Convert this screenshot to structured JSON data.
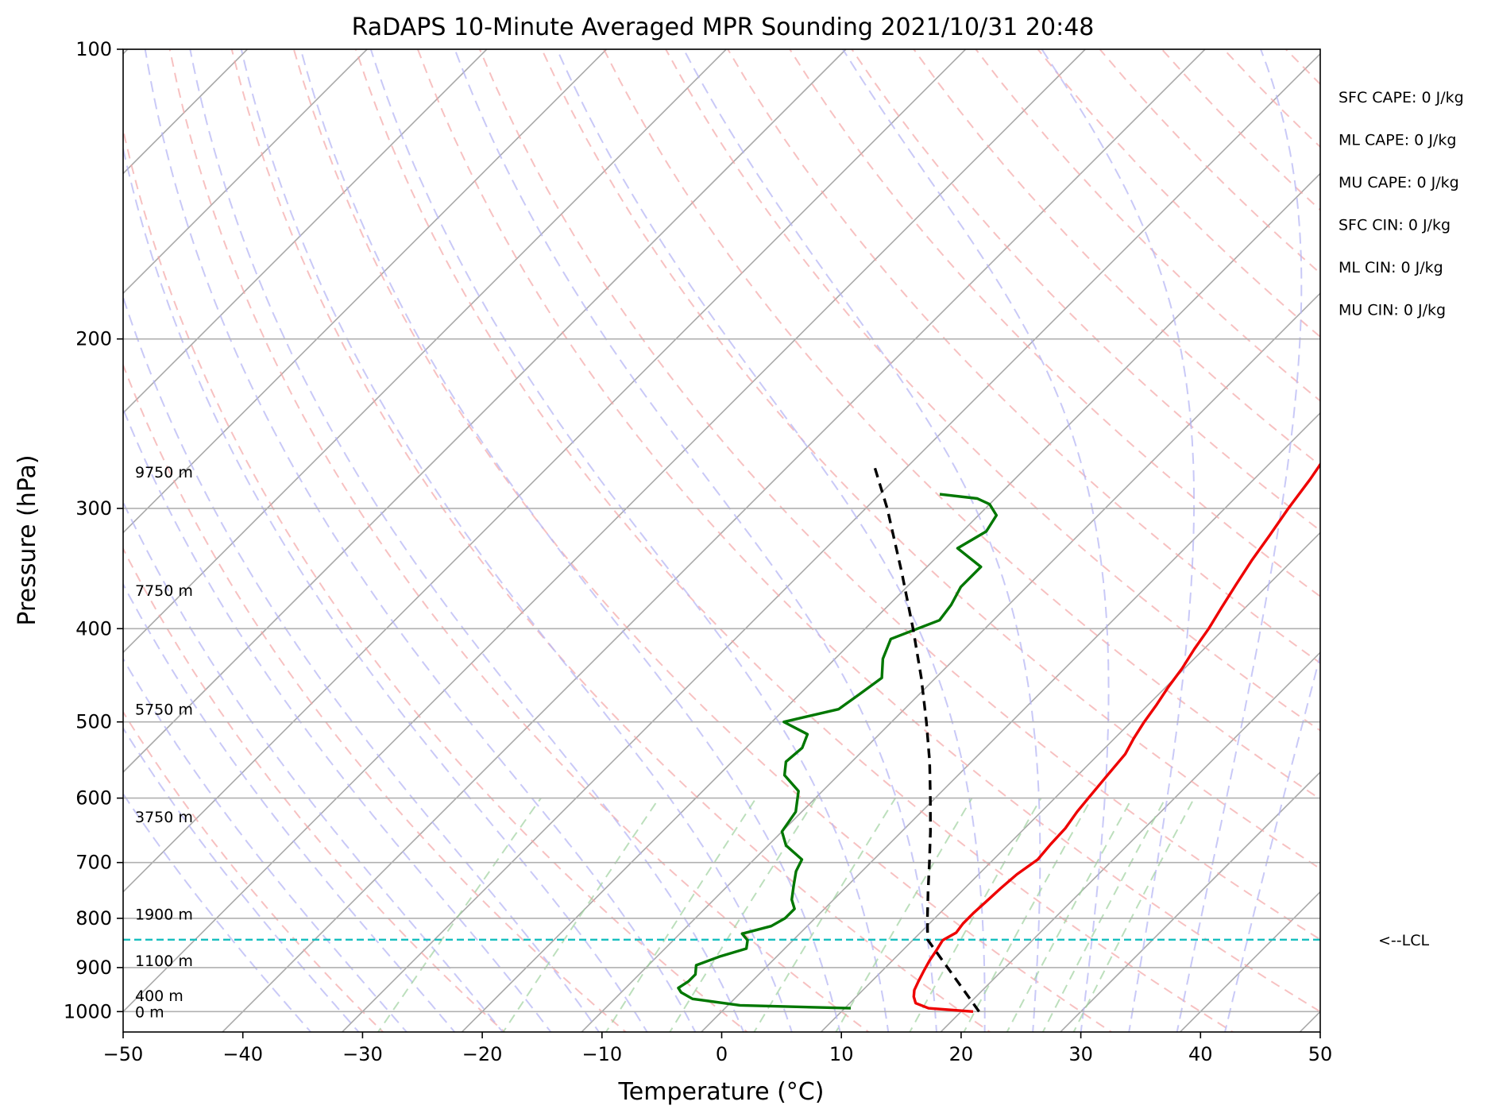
{
  "chart_data": {
    "type": "line",
    "title": "RaDAPS 10-Minute Averaged MPR Sounding 2021/10/31 20:48",
    "xlabel": "Temperature (°C)",
    "ylabel": "Pressure (hPa)",
    "xlim": [
      -50,
      50
    ],
    "ylim": [
      1050,
      100
    ],
    "y_scale": "log",
    "skew": true,
    "grid": true,
    "x_ticks": [
      "−50",
      "−40",
      "−30",
      "−20",
      "−10",
      "0",
      "10",
      "20",
      "30",
      "40",
      "50"
    ],
    "y_ticks": [
      "100",
      "200",
      "300",
      "400",
      "500",
      "600",
      "700",
      "800",
      "900",
      "1000"
    ],
    "height_labels": [
      {
        "text": "9750 m",
        "p": 275
      },
      {
        "text": "7750 m",
        "p": 365
      },
      {
        "text": "5750 m",
        "p": 485
      },
      {
        "text": "3750 m",
        "p": 627
      },
      {
        "text": "1900 m",
        "p": 792
      },
      {
        "text": "1100 m",
        "p": 885
      },
      {
        "text": "400 m",
        "p": 962
      },
      {
        "text": "0 m",
        "p": 1000
      }
    ],
    "indices": [
      {
        "text": "SFC CAPE: 0 J/kg"
      },
      {
        "text": "ML CAPE: 0 J/kg"
      },
      {
        "text": "MU CAPE: 0 J/kg"
      },
      {
        "text": "SFC CIN: 0 J/kg"
      },
      {
        "text": "ML CIN: 0 J/kg"
      },
      {
        "text": "MU CIN: 0 J/kg"
      }
    ],
    "lcl": {
      "p": 842,
      "label": "<--LCL"
    },
    "series": [
      {
        "key": "temperature",
        "color": "#ee0000",
        "dash": "none",
        "points": [
          [
            1000,
            21.0
          ],
          [
            992,
            17.0
          ],
          [
            980,
            15.5
          ],
          [
            965,
            14.8
          ],
          [
            950,
            14.3
          ],
          [
            930,
            13.9
          ],
          [
            908,
            13.5
          ],
          [
            885,
            13.1
          ],
          [
            862,
            12.8
          ],
          [
            843,
            12.5
          ],
          [
            828,
            13.0
          ],
          [
            810,
            12.8
          ],
          [
            790,
            12.8
          ],
          [
            770,
            12.9
          ],
          [
            745,
            13.0
          ],
          [
            720,
            13.2
          ],
          [
            695,
            13.7
          ],
          [
            670,
            13.5
          ],
          [
            645,
            13.4
          ],
          [
            620,
            13.0
          ],
          [
            600,
            12.8
          ],
          [
            580,
            12.6
          ],
          [
            560,
            12.4
          ],
          [
            540,
            12.2
          ],
          [
            520,
            11.6
          ],
          [
            500,
            11.1
          ],
          [
            480,
            10.7
          ],
          [
            460,
            10.2
          ],
          [
            440,
            9.8
          ],
          [
            420,
            9.2
          ],
          [
            400,
            8.7
          ],
          [
            380,
            8.0
          ],
          [
            360,
            7.3
          ],
          [
            340,
            6.6
          ],
          [
            320,
            6.0
          ],
          [
            300,
            5.3
          ],
          [
            280,
            4.7
          ],
          [
            265,
            4.1
          ]
        ]
      },
      {
        "key": "dewpoint",
        "color": "#007700",
        "dash": "none",
        "points": [
          [
            992,
            10.5
          ],
          [
            985,
            1.0
          ],
          [
            970,
            -3.5
          ],
          [
            955,
            -5.0
          ],
          [
            945,
            -5.6
          ],
          [
            930,
            -5.3
          ],
          [
            915,
            -5.3
          ],
          [
            895,
            -6.0
          ],
          [
            877,
            -4.8
          ],
          [
            860,
            -3.2
          ],
          [
            843,
            -3.8
          ],
          [
            830,
            -4.8
          ],
          [
            815,
            -3.0
          ],
          [
            800,
            -2.5
          ],
          [
            782,
            -2.5
          ],
          [
            765,
            -3.5
          ],
          [
            740,
            -4.5
          ],
          [
            715,
            -5.5
          ],
          [
            695,
            -6.0
          ],
          [
            672,
            -8.5
          ],
          [
            650,
            -10.0
          ],
          [
            620,
            -10.5
          ],
          [
            590,
            -12.0
          ],
          [
            568,
            -14.5
          ],
          [
            550,
            -15.5
          ],
          [
            532,
            -15.3
          ],
          [
            515,
            -16.0
          ],
          [
            500,
            -19.0
          ],
          [
            485,
            -15.5
          ],
          [
            468,
            -15.0
          ],
          [
            450,
            -14.5
          ],
          [
            430,
            -16.0
          ],
          [
            410,
            -17.0
          ],
          [
            392,
            -14.5
          ],
          [
            378,
            -14.8
          ],
          [
            362,
            -15.5
          ],
          [
            345,
            -15.5
          ],
          [
            330,
            -19.0
          ],
          [
            317,
            -18.0
          ],
          [
            305,
            -18.5
          ],
          [
            297,
            -20.0
          ],
          [
            293,
            -21.5
          ],
          [
            290,
            -25.0
          ]
        ]
      },
      {
        "key": "parcel",
        "color": "#000000",
        "dash": "12 8",
        "points": [
          [
            1000,
            21.5
          ],
          [
            842,
            11.2
          ],
          [
            800,
            9.4
          ],
          [
            750,
            7.2
          ],
          [
            700,
            4.9
          ],
          [
            650,
            2.4
          ],
          [
            600,
            -0.4
          ],
          [
            550,
            -3.5
          ],
          [
            500,
            -7.1
          ],
          [
            450,
            -11.2
          ],
          [
            400,
            -16.0
          ],
          [
            350,
            -21.6
          ],
          [
            300,
            -28.2
          ],
          [
            270,
            -33.0
          ]
        ]
      }
    ]
  }
}
